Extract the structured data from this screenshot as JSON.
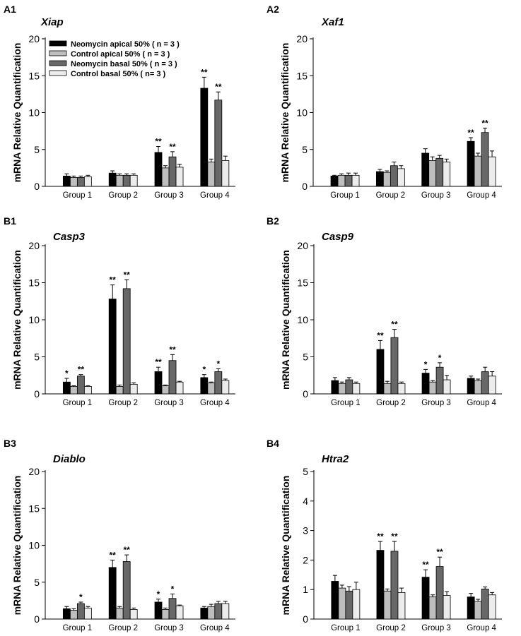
{
  "series_names": [
    "Neomycin apical 50% ( n = 3 )",
    "Control apical 50% ( n = 3 )",
    "Neomycin basal 50% ( n = 3 )",
    "Control basal 50% ( n= 3 )"
  ],
  "series_colors": [
    "#000000",
    "#bebebe",
    "#686868",
    "#ececec"
  ],
  "ylabel": "mRNA Relative Quantification",
  "chart_data": [
    {
      "type": "bar",
      "panel": "A1",
      "title": "Xiap",
      "xlabel": "",
      "ylabel": "mRNA Relative Quantification",
      "ylim": [
        0,
        20
      ],
      "yticks": [
        0,
        5,
        10,
        15,
        20
      ],
      "categories": [
        "Group 1",
        "Group 2",
        "Group 3",
        "Group 4"
      ],
      "series": [
        {
          "name": "Neomycin apical 50% ( n = 3 )",
          "values": [
            1.4,
            1.8,
            4.6,
            13.3
          ],
          "errors": [
            0.3,
            0.3,
            0.8,
            1.5
          ],
          "significance": [
            "",
            "",
            "**",
            "**"
          ]
        },
        {
          "name": "Control apical 50% ( n = 3 )",
          "values": [
            1.2,
            1.5,
            2.5,
            3.3
          ],
          "errors": [
            0.2,
            0.2,
            0.3,
            0.4
          ],
          "significance": [
            "",
            "",
            "",
            ""
          ]
        },
        {
          "name": "Neomycin basal 50% ( n = 3 )",
          "values": [
            1.2,
            1.5,
            4.0,
            11.7
          ],
          "errors": [
            0.2,
            0.2,
            0.7,
            1.1
          ],
          "significance": [
            "",
            "",
            "**",
            "**"
          ]
        },
        {
          "name": "Control basal 50% ( n= 3 )",
          "values": [
            1.3,
            1.5,
            2.6,
            3.5
          ],
          "errors": [
            0.2,
            0.2,
            0.4,
            0.6
          ],
          "significance": [
            "",
            "",
            "",
            ""
          ]
        }
      ],
      "legend": "top-left"
    },
    {
      "type": "bar",
      "panel": "A2",
      "title": "Xaf1",
      "xlabel": "",
      "ylabel": "mRNA Relative Quantification",
      "ylim": [
        0,
        20
      ],
      "yticks": [
        0,
        5,
        10,
        15,
        20
      ],
      "categories": [
        "Group 1",
        "Group 2",
        "Group 3",
        "Group 4"
      ],
      "series": [
        {
          "name": "Neomycin apical 50% ( n = 3 )",
          "values": [
            1.4,
            2.0,
            4.5,
            6.1
          ],
          "errors": [
            0.1,
            0.3,
            0.6,
            0.5
          ],
          "significance": [
            "",
            "",
            "",
            "**"
          ]
        },
        {
          "name": "Control apical 50% ( n = 3 )",
          "values": [
            1.5,
            1.9,
            3.5,
            4.1
          ],
          "errors": [
            0.2,
            0.2,
            0.5,
            0.4
          ],
          "significance": [
            "",
            "",
            "",
            ""
          ]
        },
        {
          "name": "Neomycin basal 50% ( n = 3 )",
          "values": [
            1.5,
            2.8,
            3.8,
            7.3
          ],
          "errors": [
            0.3,
            0.5,
            0.4,
            0.6
          ],
          "significance": [
            "",
            "",
            "",
            "**"
          ]
        },
        {
          "name": "Control basal 50% ( n= 3 )",
          "values": [
            1.5,
            2.4,
            3.3,
            4.0
          ],
          "errors": [
            0.3,
            0.4,
            0.4,
            0.8
          ],
          "significance": [
            "",
            "",
            "",
            ""
          ]
        }
      ]
    },
    {
      "type": "bar",
      "panel": "B1",
      "title": "Casp3",
      "xlabel": "",
      "ylabel": "mRNA Relative Quantification",
      "ylim": [
        0,
        20
      ],
      "yticks": [
        0,
        5,
        10,
        15,
        20
      ],
      "categories": [
        "Group 1",
        "Group 2",
        "Group 3",
        "Group 4"
      ],
      "series": [
        {
          "name": "Neomycin apical 50% ( n = 3 )",
          "values": [
            1.6,
            12.8,
            3.0,
            2.2
          ],
          "errors": [
            0.5,
            1.9,
            0.6,
            0.4
          ],
          "significance": [
            "*",
            "**",
            "**",
            "*"
          ]
        },
        {
          "name": "Control apical 50% ( n = 3 )",
          "values": [
            1.0,
            1.0,
            1.1,
            1.5
          ],
          "errors": [
            0.1,
            0.2,
            0.1,
            0.1
          ],
          "significance": [
            "",
            "",
            "",
            ""
          ]
        },
        {
          "name": "Neomycin basal 50% ( n = 3 )",
          "values": [
            2.4,
            14.2,
            4.5,
            3.0
          ],
          "errors": [
            0.2,
            1.2,
            0.8,
            0.4
          ],
          "significance": [
            "**",
            "**",
            "**",
            "*"
          ]
        },
        {
          "name": "Control basal 50% ( n= 3 )",
          "values": [
            1.0,
            1.3,
            1.6,
            1.8
          ],
          "errors": [
            0.1,
            0.2,
            0.1,
            0.2
          ],
          "significance": [
            "",
            "",
            "",
            ""
          ]
        }
      ]
    },
    {
      "type": "bar",
      "panel": "B2",
      "title": "Casp9",
      "xlabel": "",
      "ylabel": "mRNA Relative Quantification",
      "ylim": [
        0,
        20
      ],
      "yticks": [
        0,
        5,
        10,
        15,
        20
      ],
      "categories": [
        "Group 1",
        "Group 2",
        "Group 3",
        "Group 4"
      ],
      "series": [
        {
          "name": "Neomycin apical 50% ( n = 3 )",
          "values": [
            1.8,
            6.0,
            2.8,
            2.1
          ],
          "errors": [
            0.4,
            1.2,
            0.5,
            0.3
          ],
          "significance": [
            "",
            "**",
            "*",
            ""
          ]
        },
        {
          "name": "Control apical 50% ( n = 3 )",
          "values": [
            1.4,
            1.4,
            1.6,
            1.8
          ],
          "errors": [
            0.2,
            0.3,
            0.2,
            0.2
          ],
          "significance": [
            "",
            "",
            "",
            ""
          ]
        },
        {
          "name": "Neomycin basal 50% ( n = 3 )",
          "values": [
            1.9,
            7.6,
            3.6,
            3.0
          ],
          "errors": [
            0.3,
            1.1,
            0.6,
            0.6
          ],
          "significance": [
            "",
            "**",
            "*",
            ""
          ]
        },
        {
          "name": "Control basal 50% ( n= 3 )",
          "values": [
            1.4,
            1.4,
            1.9,
            2.4
          ],
          "errors": [
            0.2,
            0.2,
            0.6,
            0.6
          ],
          "significance": [
            "",
            "",
            "",
            ""
          ]
        }
      ]
    },
    {
      "type": "bar",
      "panel": "B3",
      "title": "Diablo",
      "xlabel": "",
      "ylabel": "mRNA Relative Quantification",
      "ylim": [
        0,
        20
      ],
      "yticks": [
        0,
        5,
        10,
        15,
        20
      ],
      "categories": [
        "Group 1",
        "Group 2",
        "Group 3",
        "Group 4"
      ],
      "series": [
        {
          "name": "Neomycin apical 50% ( n = 3 )",
          "values": [
            1.4,
            7.0,
            2.3,
            1.5
          ],
          "errors": [
            0.3,
            1.0,
            0.4,
            0.2
          ],
          "significance": [
            "",
            "**",
            "*",
            ""
          ]
        },
        {
          "name": "Control apical 50% ( n = 3 )",
          "values": [
            1.2,
            1.5,
            1.3,
            1.7
          ],
          "errors": [
            0.2,
            0.2,
            0.2,
            0.3
          ],
          "significance": [
            "",
            "",
            "",
            ""
          ]
        },
        {
          "name": "Neomycin basal 50% ( n = 3 )",
          "values": [
            2.1,
            7.8,
            2.8,
            2.1
          ],
          "errors": [
            0.2,
            0.9,
            0.6,
            0.3
          ],
          "significance": [
            "*",
            "**",
            "*",
            ""
          ]
        },
        {
          "name": "Control basal 50% ( n= 3 )",
          "values": [
            1.5,
            1.3,
            1.8,
            2.1
          ],
          "errors": [
            0.2,
            0.2,
            0.1,
            0.3
          ],
          "significance": [
            "",
            "",
            "",
            ""
          ]
        }
      ]
    },
    {
      "type": "bar",
      "panel": "B4",
      "title": "Htra2",
      "xlabel": "",
      "ylabel": "mRNA Relative Quantification",
      "ylim": [
        0,
        5
      ],
      "yticks": [
        0,
        1,
        2,
        3,
        4,
        5
      ],
      "categories": [
        "Group 1",
        "Group 2",
        "Group 3",
        "Group 4"
      ],
      "series": [
        {
          "name": "Neomycin apical 50% ( n = 3 )",
          "values": [
            1.28,
            2.33,
            1.42,
            0.75
          ],
          "errors": [
            0.2,
            0.3,
            0.25,
            0.12
          ],
          "significance": [
            "",
            "**",
            "**",
            ""
          ]
        },
        {
          "name": "Control apical 50% ( n = 3 )",
          "values": [
            1.05,
            0.95,
            0.75,
            0.6
          ],
          "errors": [
            0.1,
            0.07,
            0.07,
            0.07
          ],
          "significance": [
            "",
            "",
            "",
            ""
          ]
        },
        {
          "name": "Neomycin basal 50% ( n = 3 )",
          "values": [
            0.95,
            2.3,
            1.78,
            1.02
          ],
          "errors": [
            0.15,
            0.33,
            0.32,
            0.07
          ],
          "significance": [
            "",
            "**",
            "**",
            ""
          ]
        },
        {
          "name": "Control basal 50% ( n= 3 )",
          "values": [
            1.0,
            0.9,
            0.8,
            0.82
          ],
          "errors": [
            0.25,
            0.15,
            0.13,
            0.08
          ],
          "significance": [
            "",
            "",
            "",
            ""
          ]
        }
      ]
    }
  ]
}
